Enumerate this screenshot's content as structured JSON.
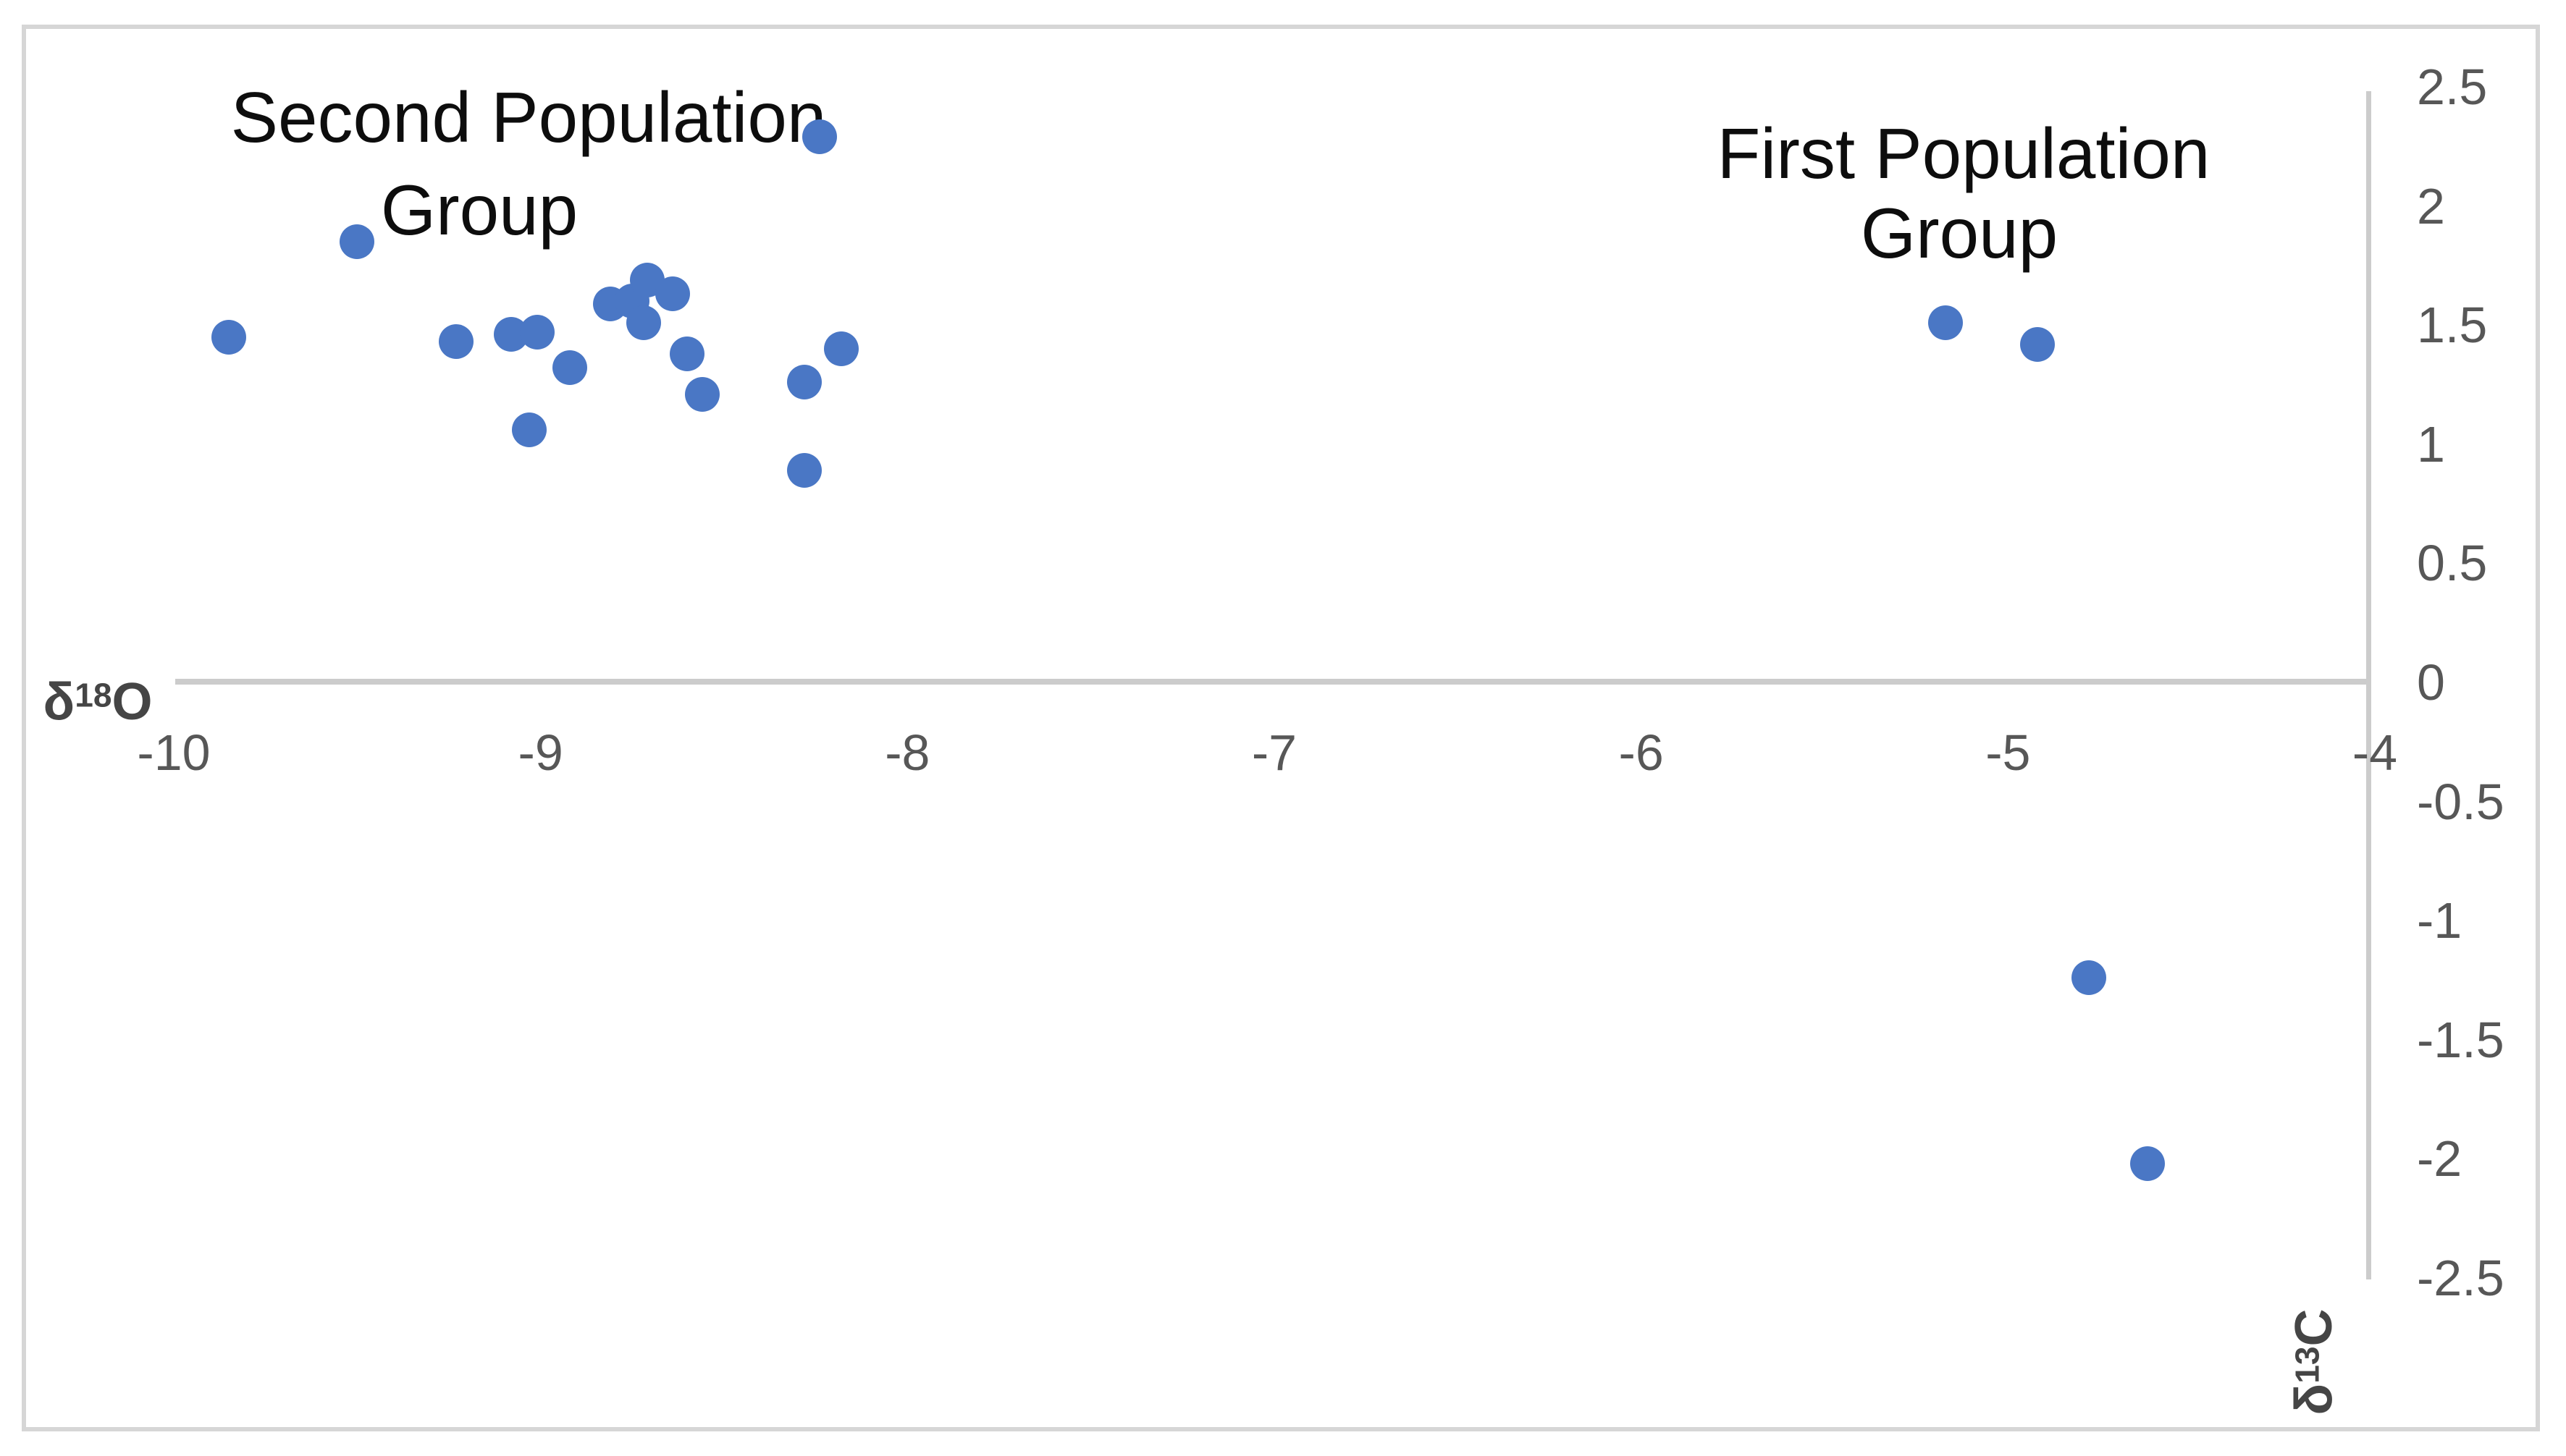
{
  "figure": {
    "background": "#ffffff",
    "frame_border_color": "#d6d6d6"
  },
  "colors": {
    "dot": "#4a77c5",
    "axis_line": "#cccccc",
    "tick_text": "#575757",
    "axis_title_text": "#454545",
    "annotation_text": "#0d0d0d"
  },
  "axis_titles": {
    "x": {
      "base": "δ",
      "sup": "18",
      "tail": "O"
    },
    "y": {
      "base": "δ",
      "sup": "13",
      "tail": "C"
    }
  },
  "chart_data": {
    "type": "scatter",
    "title": "",
    "xlabel": "δ¹⁸O",
    "ylabel": "δ¹³C",
    "xlim": [
      -10.05,
      -4
    ],
    "ylim": [
      -2.5,
      2.5
    ],
    "grid": false,
    "legend": "none",
    "x_tick_values": [
      -10,
      -9,
      -8,
      -7,
      -6,
      -5,
      -4
    ],
    "x_tick_labels": [
      "-10",
      "-9",
      "-8",
      "-7",
      "-6",
      "-5",
      "-4"
    ],
    "y_tick_values": [
      2.5,
      2,
      1.5,
      1,
      0.5,
      0,
      -0.5,
      -1,
      -1.5,
      -2,
      -2.5
    ],
    "y_tick_labels": [
      "2.5",
      "2",
      "1.5",
      "1",
      "0.5",
      "0",
      "-0.5",
      "-1",
      "-1.5",
      "-2",
      "-2.5"
    ],
    "annotations": [
      {
        "lines": [
          "Second Population",
          "Group"
        ]
      },
      {
        "lines": [
          "First Population",
          "Group"
        ]
      }
    ],
    "series": [
      {
        "name": "Second Population Group",
        "points": [
          [
            -9.85,
            1.45
          ],
          [
            -9.5,
            1.85
          ],
          [
            -9.23,
            1.43
          ],
          [
            -9.08,
            1.46
          ],
          [
            -9.01,
            1.47
          ],
          [
            -9.03,
            1.06
          ],
          [
            -8.92,
            1.32
          ],
          [
            -8.81,
            1.59
          ],
          [
            -8.75,
            1.6
          ],
          [
            -8.71,
            1.69
          ],
          [
            -8.72,
            1.51
          ],
          [
            -8.64,
            1.63
          ],
          [
            -8.6,
            1.38
          ],
          [
            -8.56,
            1.21
          ],
          [
            -8.28,
            1.26
          ],
          [
            -8.28,
            0.89
          ],
          [
            -8.24,
            2.29
          ],
          [
            -8.18,
            1.4
          ]
        ]
      },
      {
        "name": "First Population Group",
        "points": [
          [
            -5.17,
            1.51
          ],
          [
            -4.92,
            1.42
          ],
          [
            -4.78,
            -1.24
          ],
          [
            -4.62,
            -2.02
          ]
        ]
      }
    ]
  }
}
